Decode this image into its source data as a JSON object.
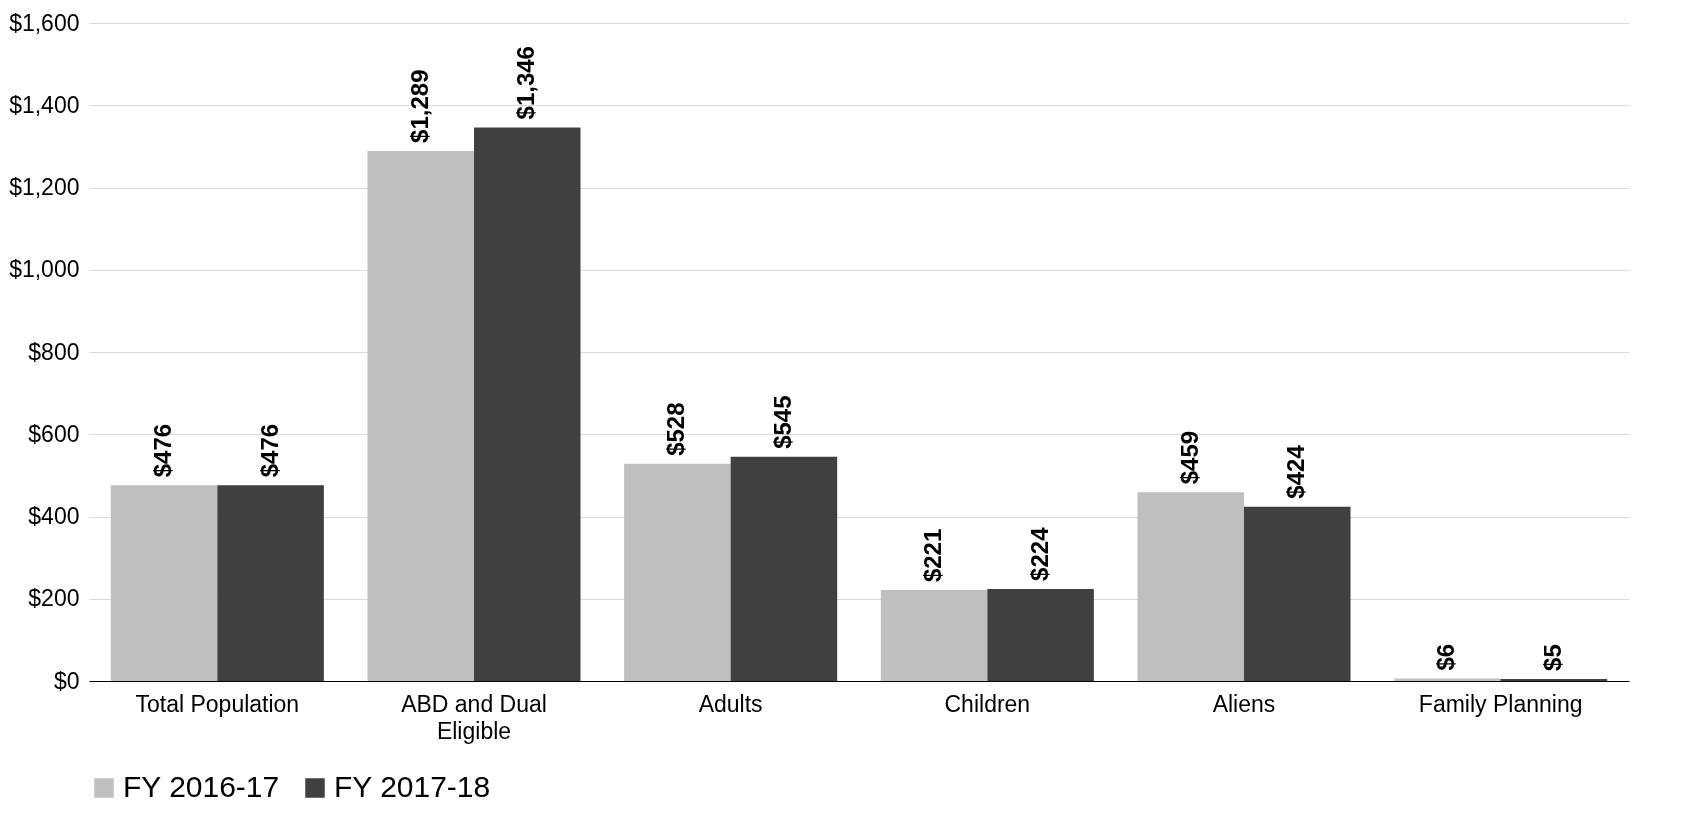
{
  "chart_data": {
    "type": "bar",
    "categories": [
      "Total Population",
      "ABD and Dual Eligible",
      "Adults",
      "Children",
      "Aliens",
      "Family Planning"
    ],
    "series": [
      {
        "name": "FY 2016-17",
        "color": "#bfbfbf",
        "values": [
          476,
          1289,
          528,
          221,
          459,
          6
        ],
        "value_labels": [
          "$476",
          "$1,289",
          "$528",
          "$221",
          "$459",
          "$6"
        ]
      },
      {
        "name": "FY 2017-18",
        "color": "#404040",
        "values": [
          476,
          1346,
          545,
          224,
          424,
          5
        ],
        "value_labels": [
          "$476",
          "$1,346",
          "$545",
          "$224",
          "$424",
          "$5"
        ]
      }
    ],
    "ylim": [
      0,
      1600
    ],
    "yticks": [
      {
        "value": 0,
        "label": "$0"
      },
      {
        "value": 200,
        "label": "$200"
      },
      {
        "value": 400,
        "label": "$400"
      },
      {
        "value": 600,
        "label": "$600"
      },
      {
        "value": 800,
        "label": "$800"
      },
      {
        "value": 1000,
        "label": "$1,000"
      },
      {
        "value": 1200,
        "label": "$1,200"
      },
      {
        "value": 1400,
        "label": "$1,400"
      },
      {
        "value": 1600,
        "label": "$1,600"
      }
    ],
    "grid": "y",
    "legend": "bottom"
  }
}
